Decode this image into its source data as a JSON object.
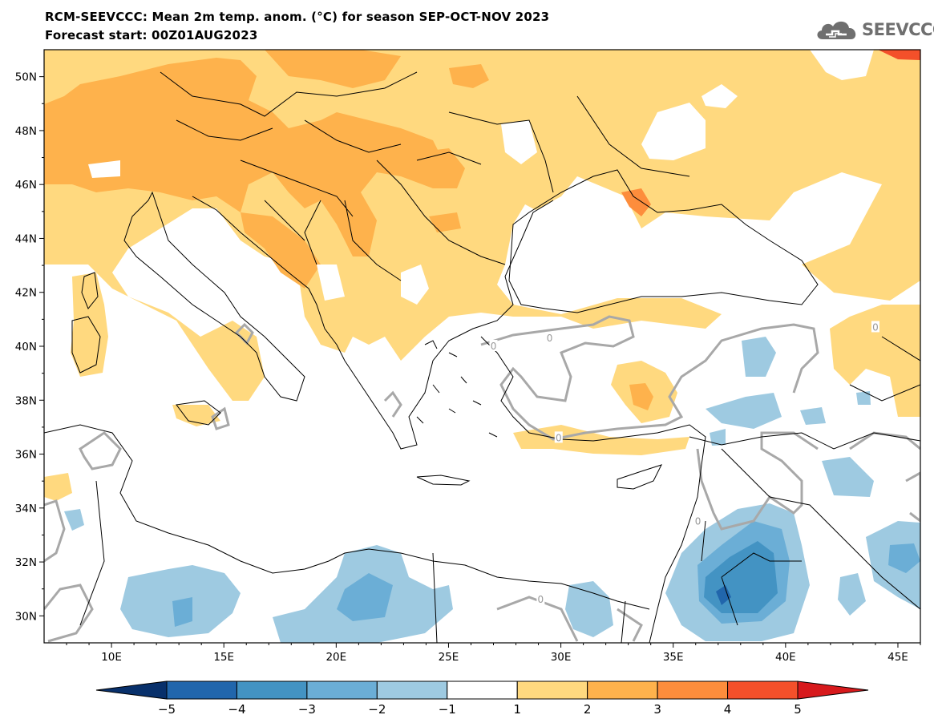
{
  "header": {
    "title_line1": "RCM-SEEVCCC: Mean 2m temp. anom. (°C) for season SEP-OCT-NOV 2023",
    "title_line2": "Forecast start: 00Z01AUG2023"
  },
  "logo": {
    "text": "SEEVCCC",
    "icon": "cloud-logo-icon",
    "color": "#6f6f6f"
  },
  "map": {
    "lon_range": [
      7,
      46
    ],
    "lat_range": [
      29,
      51
    ],
    "lon_ticks": [
      {
        "value": 10,
        "label": "10E"
      },
      {
        "value": 15,
        "label": "15E"
      },
      {
        "value": 20,
        "label": "20E"
      },
      {
        "value": 25,
        "label": "25E"
      },
      {
        "value": 30,
        "label": "30E"
      },
      {
        "value": 35,
        "label": "35E"
      },
      {
        "value": 40,
        "label": "40E"
      },
      {
        "value": 45,
        "label": "45E"
      }
    ],
    "lat_ticks": [
      {
        "value": 50,
        "label": "50N"
      },
      {
        "value": 48,
        "label": "48N"
      },
      {
        "value": 46,
        "label": "46N"
      },
      {
        "value": 44,
        "label": "44N"
      },
      {
        "value": 42,
        "label": "42N"
      },
      {
        "value": 40,
        "label": "40N"
      },
      {
        "value": 38,
        "label": "38N"
      },
      {
        "value": 36,
        "label": "36N"
      },
      {
        "value": 34,
        "label": "34N"
      },
      {
        "value": 32,
        "label": "32N"
      },
      {
        "value": 30,
        "label": "30N"
      }
    ],
    "contour_labels": [
      {
        "lon": 27.0,
        "lat": 40.0,
        "text": "0"
      },
      {
        "lon": 29.5,
        "lat": 40.3,
        "text": "0"
      },
      {
        "lon": 44.0,
        "lat": 40.7,
        "text": "0"
      },
      {
        "lon": 29.9,
        "lat": 36.6,
        "text": "0"
      },
      {
        "lon": 36.1,
        "lat": 33.5,
        "text": "0"
      },
      {
        "lon": 29.1,
        "lat": 30.6,
        "text": "0"
      }
    ]
  },
  "colorbar": {
    "labels": [
      "−5",
      "−4",
      "−3",
      "−2",
      "−1",
      "1",
      "2",
      "3",
      "4",
      "5"
    ],
    "colors": [
      "#08306b",
      "#2166ac",
      "#4393c3",
      "#6baed6",
      "#9ecae1",
      "#ffffff",
      "#ffd97f",
      "#feb24c",
      "#fd8d3c",
      "#f4502a",
      "#d7191c"
    ]
  }
}
